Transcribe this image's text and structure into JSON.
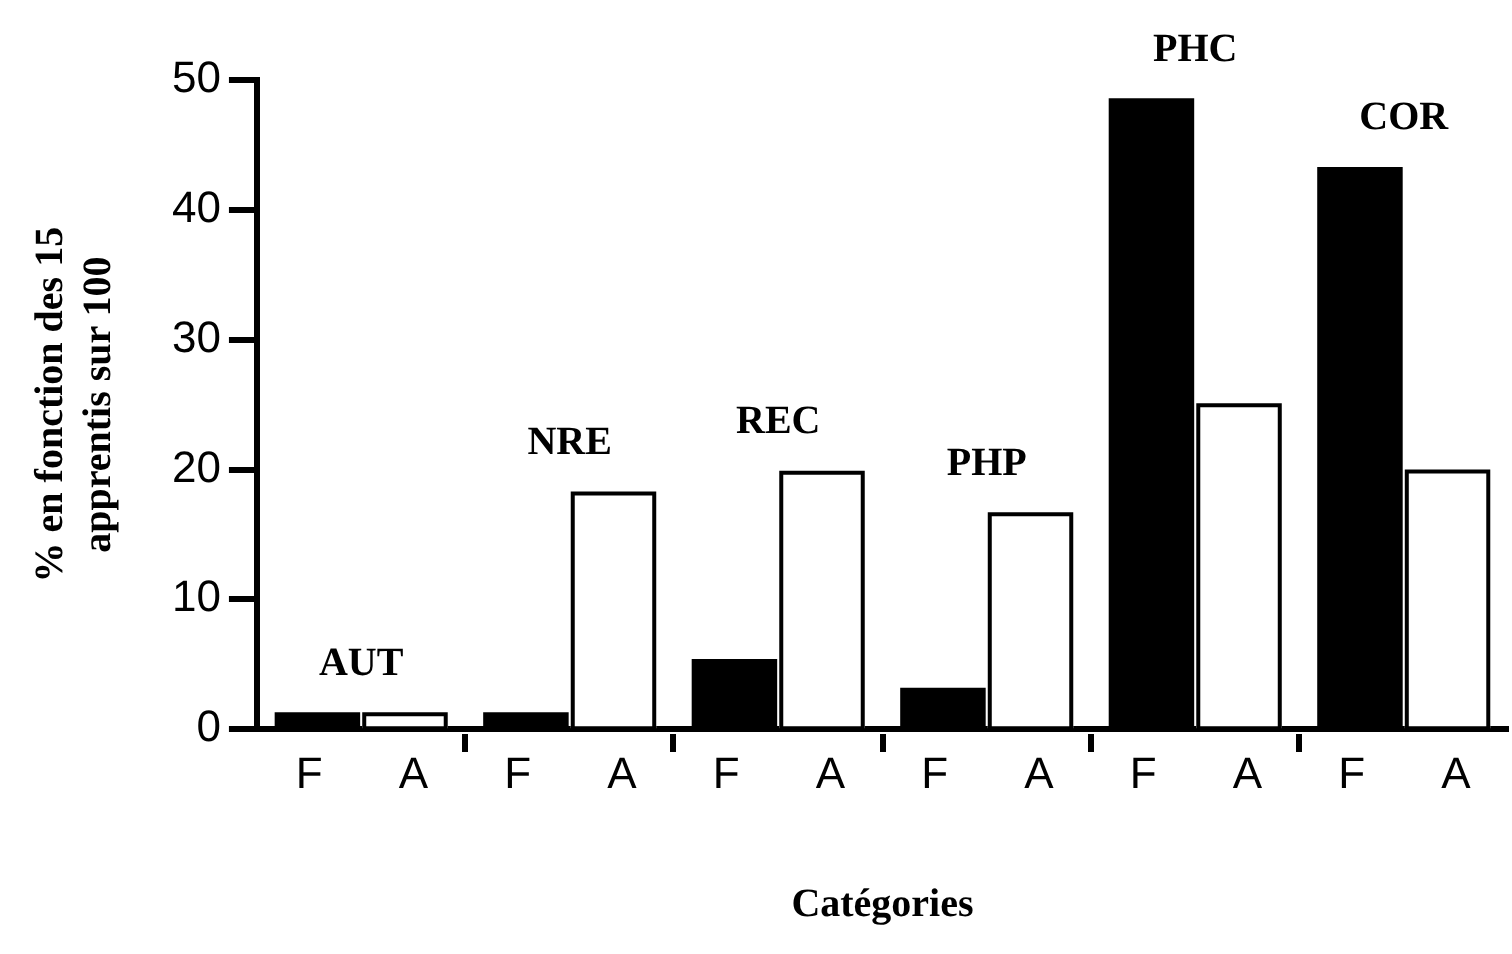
{
  "chart_data": {
    "type": "bar",
    "xlabel": "Catégories",
    "ylabel": "% en fonction des 15 apprentis sur 100",
    "categories": [
      "F",
      "A",
      "F",
      "A",
      "F",
      "A",
      "F",
      "A",
      "F",
      "A",
      "F",
      "A"
    ],
    "values": [
      1.3,
      1.3,
      1.3,
      18.3,
      5.4,
      19.9,
      3.2,
      16.7,
      48.6,
      25.1,
      43.3,
      20
    ],
    "colors": [
      "#000000",
      "#ffffff",
      "#000000",
      "#ffffff",
      "#000000",
      "#ffffff",
      "#000000",
      "#ffffff",
      "#000000",
      "#ffffff",
      "#000000",
      "#ffffff"
    ],
    "annotations": [
      "AUT",
      "NRE",
      "REC",
      "PHP",
      "PHC",
      "COR"
    ],
    "ylim": [
      0,
      50
    ],
    "yticks": [
      0,
      10,
      20,
      30,
      40,
      50
    ],
    "grid": false,
    "legend": false
  }
}
